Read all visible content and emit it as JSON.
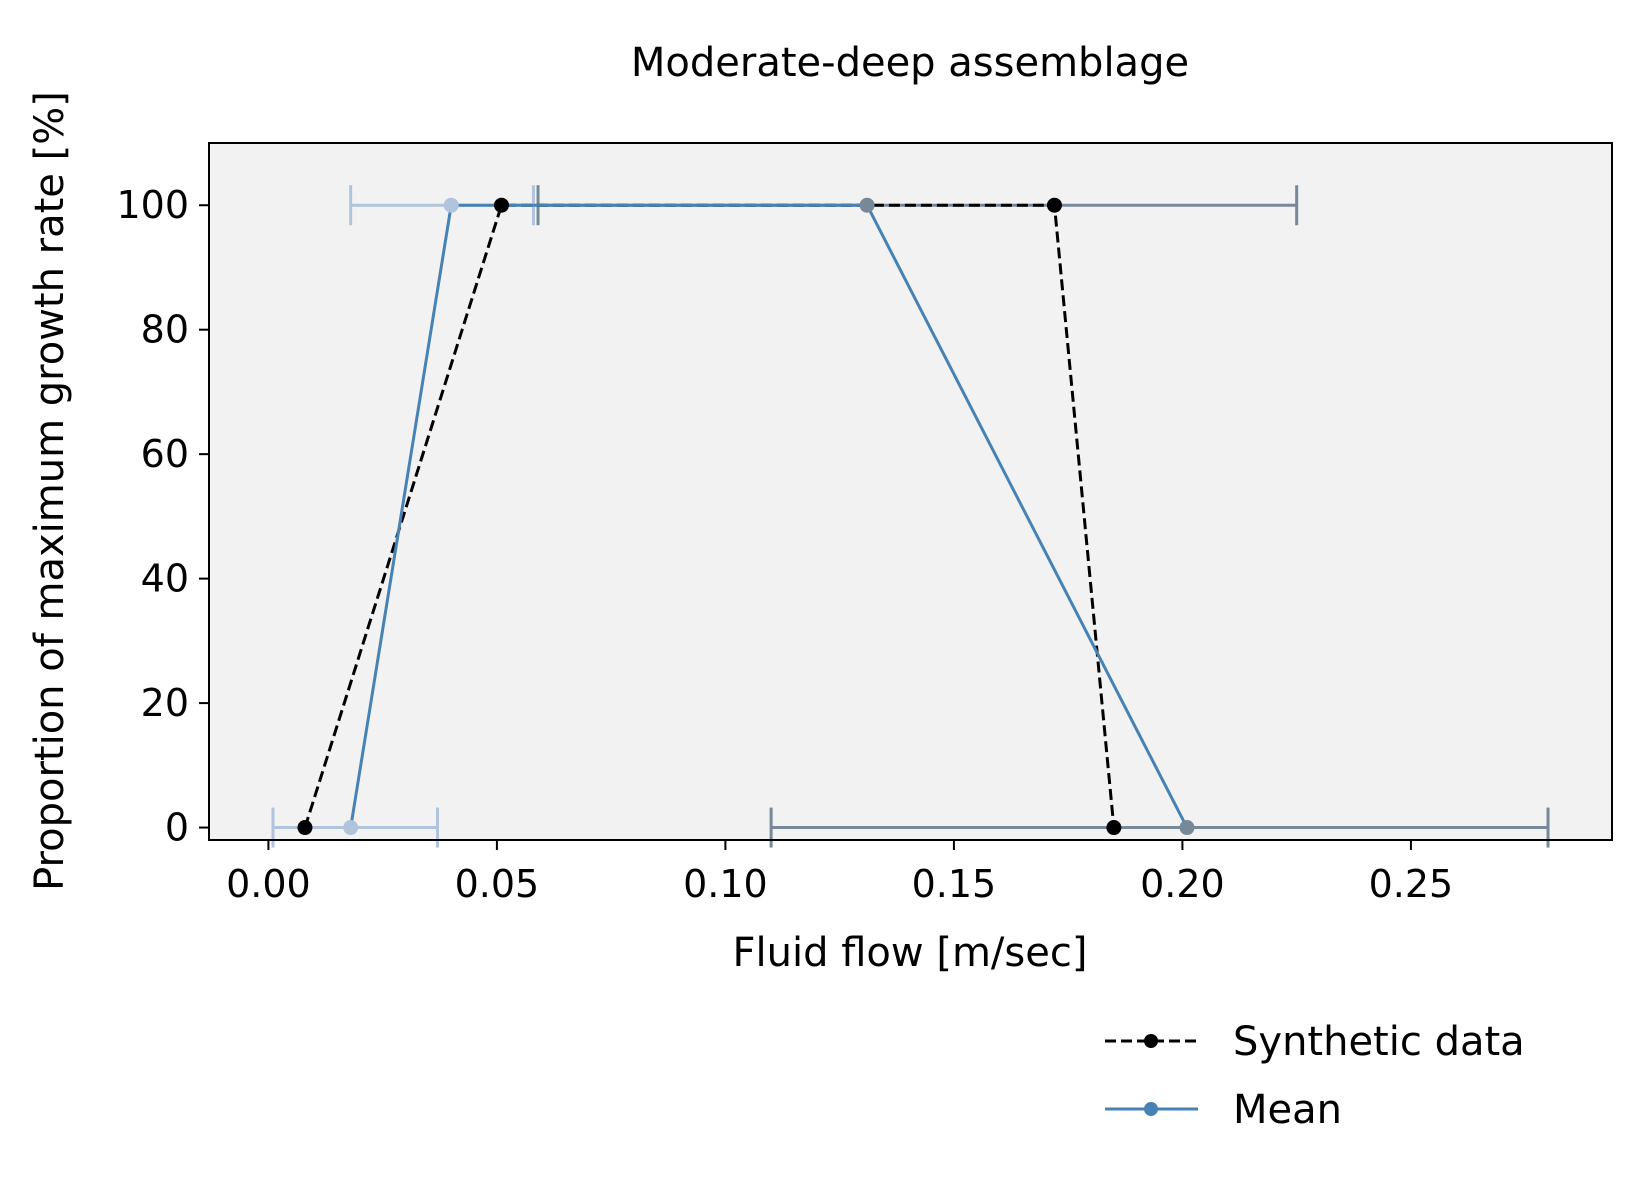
{
  "chart_data": {
    "type": "line",
    "title": "Moderate-deep assemblage",
    "xlabel": "Fluid flow [m/sec]",
    "ylabel": "Proportion of maximum growth rate [%]",
    "xlim": [
      -0.013,
      0.294
    ],
    "ylim": [
      -2,
      110
    ],
    "xticks": [
      0.0,
      0.05,
      0.1,
      0.15,
      0.2,
      0.25
    ],
    "xtick_labels": [
      "0.00",
      "0.05",
      "0.10",
      "0.15",
      "0.20",
      "0.25"
    ],
    "yticks": [
      0,
      20,
      40,
      60,
      80,
      100
    ],
    "ytick_labels": [
      "0",
      "20",
      "40",
      "60",
      "80",
      "100"
    ],
    "grid": false,
    "background": "#f2f2f2",
    "legend_position": "below-right",
    "series": [
      {
        "name": "Synthetic data",
        "style": "dashed",
        "marker": "circle",
        "color": "#000000",
        "x": [
          0.008,
          0.051,
          0.172,
          0.185
        ],
        "y": [
          0,
          100,
          100,
          0
        ]
      },
      {
        "name": "Mean",
        "style": "solid",
        "marker": "circle",
        "color": "#4682b4",
        "x": [
          0.018,
          0.04,
          0.131,
          0.201
        ],
        "y": [
          0,
          100,
          100,
          0
        ],
        "point_colors": [
          "#b0c4de",
          "#b0c4de",
          "#778899",
          "#778899"
        ],
        "xerr_low": [
          0.001,
          0.018,
          0.059,
          0.11
        ],
        "xerr_high": [
          0.037,
          0.058,
          0.225,
          0.28
        ],
        "err_colors": [
          "#b0c4de",
          "#b0c4de",
          "#778899",
          "#778899"
        ]
      }
    ]
  }
}
